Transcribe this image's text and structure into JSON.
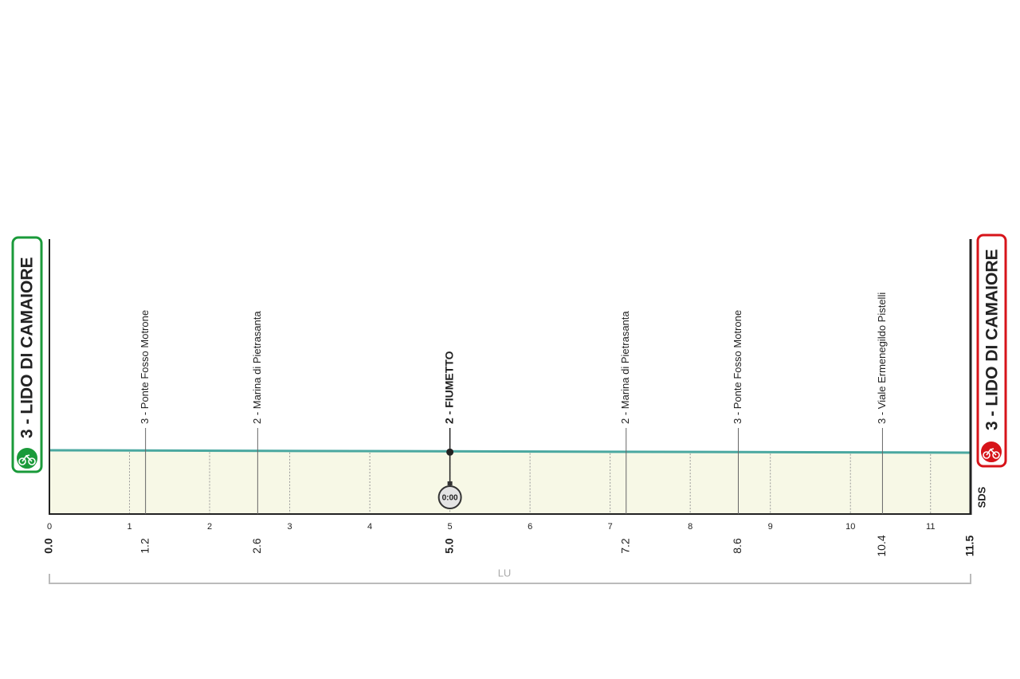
{
  "chart_data": {
    "type": "profile",
    "start": {
      "label": "3 - LIDO DI CAMAIORE",
      "km": {
        "value": 0,
        "label": "0.0"
      }
    },
    "finish": {
      "label": "3 - LIDO DI CAMAIORE",
      "km": 11.5
    },
    "waypoints": [
      {
        "name": "3 - Ponte Fosso Motrone",
        "km": 1.2
      },
      {
        "name": "2 - Marina di Pietrasanta",
        "km": 2.6
      },
      {
        "name": "2 - FIUMETTO",
        "km": {
          "value": 5,
          "label": "5.0"
        },
        "intermediate": true,
        "time_label": "0:00"
      },
      {
        "name": "2 - Marina di Pietrasanta",
        "km": 7.2
      },
      {
        "name": "3 - Ponte Fosso Motrone",
        "km": 8.6
      },
      {
        "name": "3 - Viale Ermenegildo Pistelli",
        "km": 10.4
      }
    ],
    "xlim": [
      0,
      11.5
    ],
    "xticks": [
      0,
      1,
      2,
      3,
      4,
      5,
      6,
      7,
      8,
      9,
      10,
      11
    ],
    "province": "LU",
    "logo": "SDS"
  }
}
